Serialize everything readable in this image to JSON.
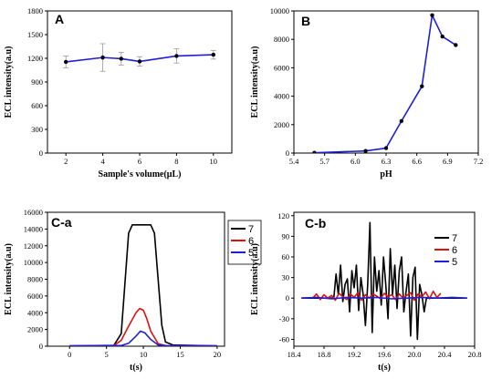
{
  "chart_data": [
    {
      "panel": "A",
      "type": "line",
      "xlabel": "Sample's volume(μL)",
      "ylabel": "ECL intensity(a.u)",
      "xlim": [
        1,
        11
      ],
      "ylim": [
        0,
        1800
      ],
      "xticks": [
        2,
        4,
        6,
        8,
        10
      ],
      "yticks": [
        0,
        300,
        600,
        900,
        1200,
        1500,
        1800
      ],
      "series": [
        {
          "x": [
            2,
            4,
            5,
            6,
            8,
            10
          ],
          "y": [
            1155,
            1210,
            1195,
            1160,
            1230,
            1245
          ],
          "err": [
            75,
            175,
            80,
            60,
            90,
            55
          ],
          "color": "#1f1fd6"
        }
      ]
    },
    {
      "panel": "B",
      "type": "line",
      "xlabel": "pH",
      "ylabel": "ECL intensity(a.u)",
      "xlim": [
        5.4,
        7.2
      ],
      "ylim": [
        0,
        10000
      ],
      "xticks": [
        "5.4",
        "5.7",
        "6.0",
        "6.3",
        "6.6",
        "6.9",
        "7.2"
      ],
      "yticks": [
        0,
        2000,
        4000,
        6000,
        8000,
        10000
      ],
      "series": [
        {
          "x": [
            5.6,
            6.1,
            6.3,
            6.45,
            6.65,
            6.75,
            6.85,
            6.98
          ],
          "y": [
            20,
            150,
            350,
            2250,
            4700,
            9700,
            8200,
            7600
          ],
          "color": "#1f1fd6"
        }
      ]
    },
    {
      "panel": "C-a",
      "type": "line",
      "xlabel": "t(s)",
      "ylabel": "ECL intensity(a.u)",
      "xlim": [
        -3,
        21
      ],
      "ylim": [
        0,
        16000
      ],
      "xticks": [
        0,
        5,
        10,
        15,
        20
      ],
      "yticks": [
        0,
        2000,
        4000,
        6000,
        8000,
        10000,
        12000,
        14000,
        16000
      ],
      "legend": [
        "7",
        "6",
        "5"
      ],
      "series": [
        {
          "name": "7",
          "color": "#000000",
          "x": [
            0,
            6,
            7,
            7.5,
            8,
            8.5,
            9,
            11,
            11.5,
            12,
            12.5,
            13,
            14,
            20
          ],
          "y": [
            40,
            100,
            1500,
            7500,
            13500,
            14500,
            14500,
            14500,
            13500,
            8000,
            2500,
            500,
            150,
            40
          ]
        },
        {
          "name": "6",
          "color": "#e01010",
          "x": [
            0,
            6,
            7,
            8,
            9,
            9.5,
            10,
            10.5,
            11,
            12,
            13,
            20
          ],
          "y": [
            40,
            80,
            700,
            2400,
            4000,
            4500,
            4300,
            3200,
            1800,
            300,
            80,
            40
          ]
        },
        {
          "name": "5",
          "color": "#1f1fd6",
          "x": [
            0,
            7,
            8,
            9,
            9.6,
            10.2,
            11,
            12,
            13,
            20
          ],
          "y": [
            40,
            80,
            350,
            1200,
            1800,
            1600,
            800,
            150,
            60,
            40
          ]
        }
      ]
    },
    {
      "panel": "C-b",
      "type": "line",
      "xlabel": "t(s)",
      "ylabel": "ECL intensity(a.u)",
      "xlim": [
        18.4,
        20.8
      ],
      "ylim": [
        -70,
        125
      ],
      "xticks": [
        "18.4",
        "18.8",
        "19.2",
        "19.6",
        "20.0",
        "20.4",
        "20.8"
      ],
      "yticks": [
        -60,
        -30,
        0,
        30,
        60,
        90,
        120
      ],
      "legend": [
        "7",
        "6",
        "5"
      ],
      "series": [
        {
          "name": "7",
          "color": "#000000",
          "x": [
            18.5,
            18.93,
            18.96,
            18.99,
            19.02,
            19.05,
            19.08,
            19.11,
            19.14,
            19.17,
            19.2,
            19.23,
            19.26,
            19.29,
            19.32,
            19.35,
            19.38,
            19.41,
            19.44,
            19.47,
            19.5,
            19.53,
            19.56,
            19.59,
            19.62,
            19.65,
            19.68,
            19.71,
            19.74,
            19.77,
            19.8,
            19.83,
            19.86,
            19.89,
            19.92,
            19.95,
            19.98,
            20.01,
            20.04,
            20.07,
            20.1,
            20.13,
            20.16,
            20.7
          ],
          "y": [
            0,
            0,
            35,
            5,
            48,
            -5,
            20,
            28,
            -20,
            40,
            15,
            48,
            -18,
            30,
            5,
            -40,
            20,
            110,
            -50,
            60,
            10,
            40,
            -10,
            60,
            20,
            -30,
            72,
            5,
            48,
            -15,
            40,
            60,
            -20,
            10,
            35,
            -55,
            30,
            45,
            -60,
            20,
            5,
            -20,
            0,
            0
          ]
        },
        {
          "name": "6",
          "color": "#e01010",
          "x": [
            18.65,
            18.7,
            18.75,
            18.8,
            18.85,
            18.9,
            18.95,
            19.0,
            19.05,
            19.1,
            19.15,
            19.2,
            19.25,
            19.3,
            19.35,
            19.4,
            19.45,
            19.5,
            19.55,
            19.6,
            19.65,
            19.7,
            19.75,
            19.8,
            19.85,
            19.9,
            19.95,
            20.0,
            20.05,
            20.1,
            20.15,
            20.2,
            20.25,
            20.3,
            20.35
          ],
          "y": [
            0,
            6,
            -2,
            5,
            0,
            4,
            -3,
            7,
            2,
            -2,
            6,
            1,
            8,
            -3,
            5,
            0,
            6,
            3,
            -1,
            7,
            2,
            5,
            -2,
            6,
            0,
            4,
            8,
            -3,
            6,
            2,
            9,
            -1,
            10,
            1,
            7
          ]
        },
        {
          "name": "5",
          "color": "#1f1fd6",
          "x": [
            18.5,
            18.7,
            18.9,
            19.1,
            19.3,
            19.5,
            19.7,
            19.9,
            20.1,
            20.3,
            20.5,
            20.7
          ],
          "y": [
            0,
            1,
            -1,
            1,
            0,
            1,
            -1,
            0,
            1,
            0,
            1,
            0
          ]
        }
      ]
    }
  ]
}
